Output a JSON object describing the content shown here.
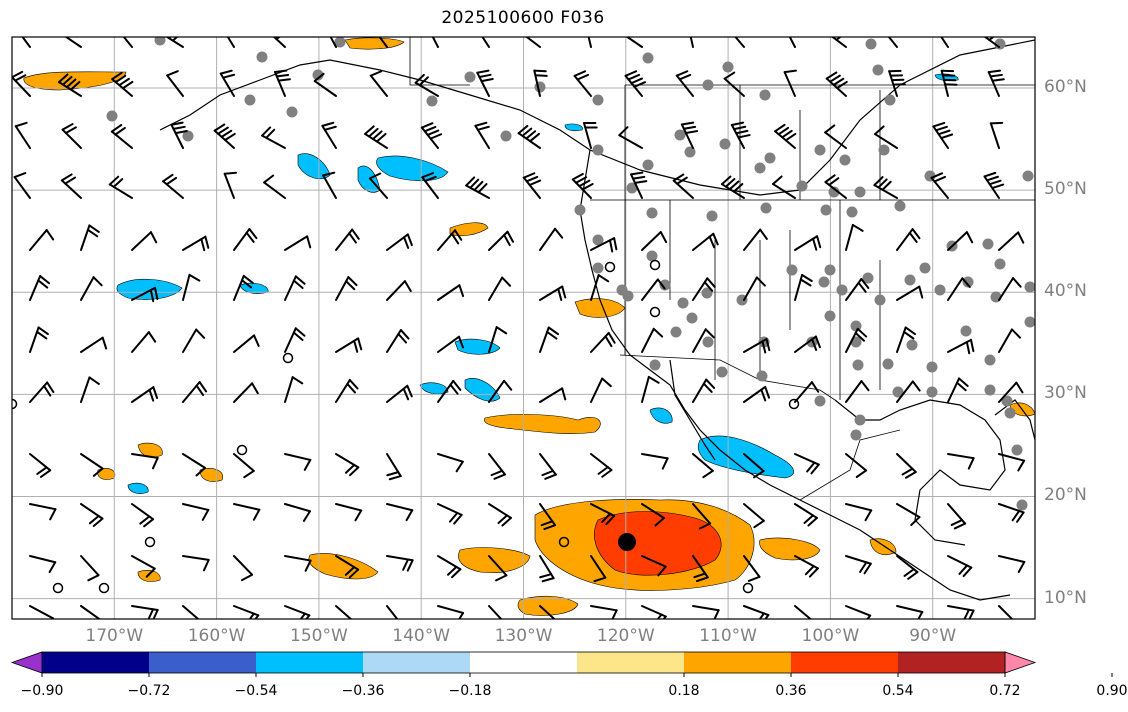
{
  "title": "2025100600 F036",
  "lat_labels": [
    "60°N",
    "50°N",
    "40°N",
    "30°N",
    "20°N",
    "10°N"
  ],
  "lat_values": [
    60,
    50,
    40,
    30,
    20,
    10
  ],
  "lon_labels": [
    "170°W",
    "160°W",
    "150°W",
    "140°W",
    "130°W",
    "120°W",
    "110°W",
    "100°W",
    "90°W"
  ],
  "lon_values": [
    -170,
    -160,
    -150,
    -140,
    -130,
    -120,
    -110,
    -100,
    -90
  ],
  "colorbar": {
    "ticks": [
      "−0.90",
      "−0.72",
      "−0.54",
      "−0.36",
      "−0.18",
      "0.18",
      "0.36",
      "0.54",
      "0.72",
      "0.90"
    ],
    "bin_colors": [
      "#9932cc",
      "#00008b",
      "#3a5fcd",
      "#00bfff",
      "#add8f6",
      "#ffffff",
      "#fde68a",
      "#ffa500",
      "#ff3d00",
      "#b22222",
      "#ff88aa"
    ]
  },
  "extent": {
    "lon": [
      -180,
      -80
    ],
    "lat": [
      8,
      65
    ]
  },
  "colors": {
    "grid": "#b0b0b0",
    "station": "#808080",
    "label": "#808080"
  }
}
